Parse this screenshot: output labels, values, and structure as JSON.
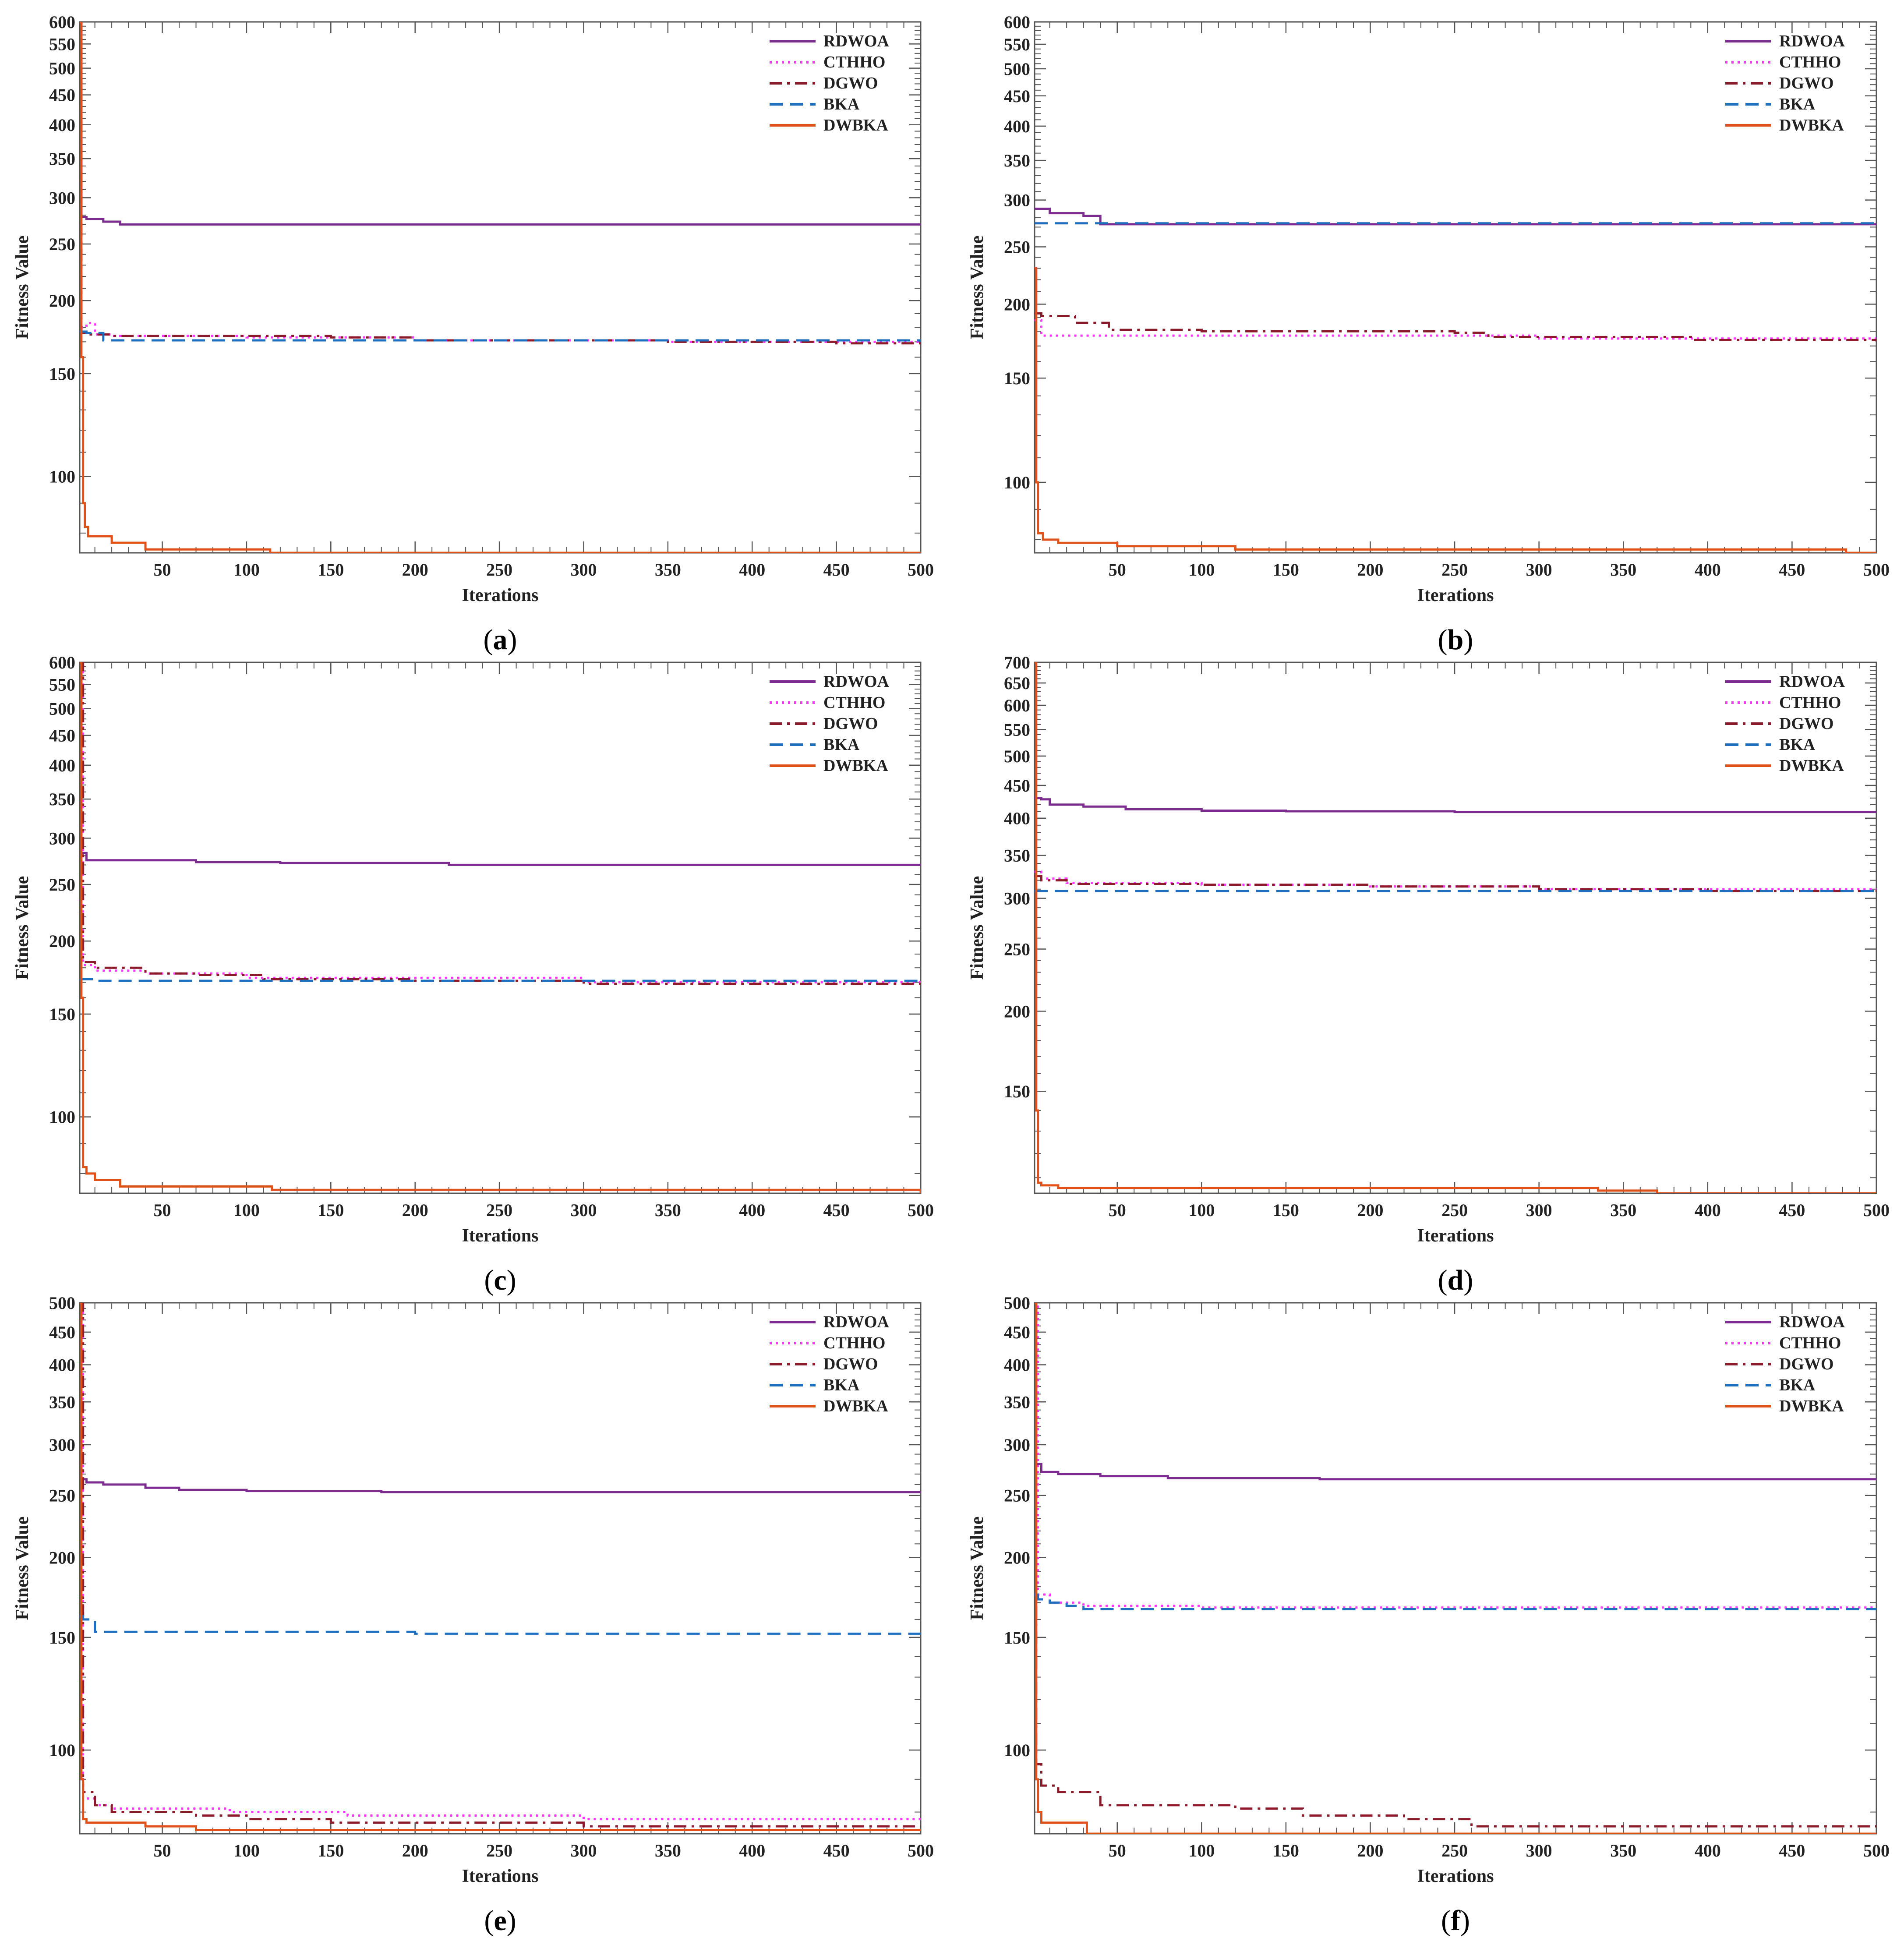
{
  "figure": {
    "x_axis_label": "Iterations",
    "y_axis_label": "Fitness Value"
  },
  "styles": {
    "RDWOA": {
      "color": "#7B2C8E",
      "dash": "solid"
    },
    "CTHHO": {
      "color": "#FF33FF",
      "dash": "dotted"
    },
    "DGWO": {
      "color": "#8B1A2B",
      "dash": "dashdot"
    },
    "BKA": {
      "color": "#1F6FBF",
      "dash": "dashed"
    },
    "DWBKA": {
      "color": "#E0521A",
      "dash": "solid"
    }
  },
  "chart_data": [
    {
      "type": "line",
      "panel_label": "a",
      "caption_open": "(",
      "caption_close": ")",
      "xlabel": "Iterations",
      "ylabel": "Fitness Value",
      "xlim": [
        1,
        500
      ],
      "ylim": [
        74,
        600
      ],
      "yscale": "log",
      "xticks": [
        50,
        100,
        150,
        200,
        250,
        300,
        350,
        400,
        450,
        500
      ],
      "yticks": [
        100,
        150,
        200,
        250,
        300,
        350,
        400,
        450,
        500,
        550,
        600
      ],
      "legend": [
        "RDWOA",
        "CTHHO",
        "DGWO",
        "BKA",
        "DWBKA"
      ],
      "legend_position": "top-right",
      "series": [
        {
          "name": "RDWOA",
          "x": [
            1,
            2,
            5,
            15,
            25,
            50,
            500
          ],
          "y": [
            600,
            278,
            276,
            273,
            270,
            270,
            270
          ]
        },
        {
          "name": "CTHHO",
          "x": [
            1,
            2,
            5,
            10,
            20,
            100,
            200,
            350,
            500
          ],
          "y": [
            600,
            180,
            183,
            175,
            174,
            173,
            171,
            170,
            170
          ]
        },
        {
          "name": "DGWO",
          "x": [
            1,
            2,
            5,
            20,
            100,
            150,
            200,
            350,
            450,
            500
          ],
          "y": [
            600,
            176,
            175,
            174,
            174,
            173,
            171,
            170,
            169,
            168
          ]
        },
        {
          "name": "BKA",
          "x": [
            1,
            5,
            15,
            100,
            200,
            350,
            500
          ],
          "y": [
            177,
            176,
            171,
            171,
            171,
            171,
            170
          ]
        },
        {
          "name": "DWBKA",
          "x": [
            1,
            2,
            3,
            4,
            6,
            14,
            20,
            38,
            40,
            110,
            114,
            500
          ],
          "y": [
            600,
            160,
            90,
            82,
            79,
            79,
            77,
            77,
            75,
            75,
            74,
            74
          ]
        }
      ]
    },
    {
      "type": "line",
      "panel_label": "b",
      "caption_open": "(",
      "caption_close": ")",
      "xlabel": "Iterations",
      "ylabel": "Fitness Value",
      "xlim": [
        1,
        500
      ],
      "ylim": [
        76,
        600
      ],
      "yscale": "log",
      "xticks": [
        50,
        100,
        150,
        200,
        250,
        300,
        350,
        400,
        450,
        500
      ],
      "yticks": [
        100,
        150,
        200,
        250,
        300,
        350,
        400,
        450,
        500,
        550,
        600
      ],
      "legend": [
        "RDWOA",
        "CTHHO",
        "DGWO",
        "BKA",
        "DWBKA"
      ],
      "legend_position": "top-right",
      "series": [
        {
          "name": "RDWOA",
          "x": [
            1,
            10,
            30,
            40,
            500
          ],
          "y": [
            290,
            285,
            282,
            273,
            273
          ]
        },
        {
          "name": "CTHHO",
          "x": [
            1,
            5,
            10,
            50,
            200,
            300,
            500
          ],
          "y": [
            188,
            177,
            177,
            177,
            177,
            175,
            175
          ]
        },
        {
          "name": "DGWO",
          "x": [
            1,
            5,
            25,
            45,
            100,
            250,
            270,
            390,
            500
          ],
          "y": [
            193,
            191,
            186,
            181,
            180,
            179,
            176,
            174,
            173
          ]
        },
        {
          "name": "BKA",
          "x": [
            1,
            500
          ],
          "y": [
            274,
            274
          ]
        },
        {
          "name": "DWBKA",
          "x": [
            1,
            2,
            3,
            6,
            15,
            20,
            50,
            70,
            120,
            480,
            482,
            500
          ],
          "y": [
            230,
            100,
            82,
            80,
            79,
            79,
            78,
            78,
            77,
            77,
            76,
            76
          ]
        }
      ]
    },
    {
      "type": "line",
      "panel_label": "c",
      "caption_open": "(",
      "caption_close": ")",
      "xlabel": "Iterations",
      "ylabel": "Fitness Value",
      "xlim": [
        1,
        500
      ],
      "ylim": [
        74,
        600
      ],
      "yscale": "log",
      "xticks": [
        50,
        100,
        150,
        200,
        250,
        300,
        350,
        400,
        450,
        500
      ],
      "yticks": [
        100,
        150,
        200,
        250,
        300,
        350,
        400,
        450,
        500,
        550,
        600
      ],
      "legend": [
        "RDWOA",
        "CTHHO",
        "DGWO",
        "BKA",
        "DWBKA"
      ],
      "legend_position": "top-right",
      "series": [
        {
          "name": "RDWOA",
          "x": [
            1,
            2,
            5,
            70,
            120,
            220,
            500
          ],
          "y": [
            600,
            283,
            275,
            273,
            272,
            270,
            270
          ]
        },
        {
          "name": "CTHHO",
          "x": [
            1,
            3,
            10,
            40,
            100,
            300,
            500
          ],
          "y": [
            600,
            182,
            178,
            176,
            173,
            170,
            170
          ]
        },
        {
          "name": "DGWO",
          "x": [
            1,
            3,
            10,
            40,
            70,
            110,
            200,
            300,
            500
          ],
          "y": [
            600,
            184,
            180,
            176,
            175,
            172,
            171,
            169,
            169
          ]
        },
        {
          "name": "BKA",
          "x": [
            1,
            10,
            100,
            500
          ],
          "y": [
            172,
            171,
            171,
            170
          ]
        },
        {
          "name": "DWBKA",
          "x": [
            1,
            2,
            3,
            5,
            10,
            20,
            25,
            70,
            115,
            250,
            500
          ],
          "y": [
            600,
            160,
            82,
            80,
            78,
            78,
            76,
            76,
            75,
            75,
            74
          ]
        }
      ]
    },
    {
      "type": "line",
      "panel_label": "d",
      "caption_open": "(",
      "caption_close": ")",
      "xlabel": "Iterations",
      "ylabel": "Fitness Value",
      "xlim": [
        1,
        500
      ],
      "ylim": [
        104,
        700
      ],
      "yscale": "log",
      "xticks": [
        50,
        100,
        150,
        200,
        250,
        300,
        350,
        400,
        450,
        500
      ],
      "yticks": [
        150,
        200,
        250,
        300,
        350,
        400,
        450,
        500,
        550,
        600,
        650,
        700
      ],
      "legend": [
        "RDWOA",
        "CTHHO",
        "DGWO",
        "BKA",
        "DWBKA"
      ],
      "legend_position": "top-right",
      "series": [
        {
          "name": "RDWOA",
          "x": [
            1,
            5,
            10,
            30,
            55,
            100,
            150,
            250,
            500
          ],
          "y": [
            430,
            428,
            420,
            417,
            413,
            411,
            410,
            409,
            408
          ]
        },
        {
          "name": "CTHHO",
          "x": [
            1,
            5,
            20,
            100,
            200,
            300,
            500
          ],
          "y": [
            330,
            322,
            317,
            315,
            313,
            310,
            310
          ]
        },
        {
          "name": "DGWO",
          "x": [
            1,
            5,
            20,
            100,
            200,
            300,
            400,
            500
          ],
          "y": [
            325,
            320,
            316,
            315,
            313,
            310,
            308,
            308
          ]
        },
        {
          "name": "BKA",
          "x": [
            1,
            500
          ],
          "y": [
            308,
            308
          ]
        },
        {
          "name": "DWBKA",
          "x": [
            1,
            2,
            3,
            5,
            10,
            15,
            130,
            335,
            350,
            370,
            500
          ],
          "y": [
            700,
            140,
            108,
            107,
            107,
            106,
            106,
            105,
            105,
            104,
            104
          ]
        }
      ]
    },
    {
      "type": "line",
      "panel_label": "e",
      "caption_open": "(",
      "caption_close": ")",
      "xlabel": "Iterations",
      "ylabel": "Fitness Value",
      "xlim": [
        1,
        500
      ],
      "ylim": [
        74,
        500
      ],
      "yscale": "log",
      "xticks": [
        50,
        100,
        150,
        200,
        250,
        300,
        350,
        400,
        450,
        500
      ],
      "yticks": [
        100,
        150,
        200,
        250,
        300,
        350,
        400,
        450,
        500
      ],
      "legend": [
        "RDWOA",
        "CTHHO",
        "DGWO",
        "BKA",
        "DWBKA"
      ],
      "legend_position": "top-right",
      "series": [
        {
          "name": "RDWOA",
          "x": [
            1,
            2,
            5,
            15,
            40,
            60,
            100,
            180,
            500
          ],
          "y": [
            500,
            265,
            262,
            260,
            257,
            255,
            254,
            253,
            253
          ]
        },
        {
          "name": "CTHHO",
          "x": [
            1,
            3,
            10,
            20,
            60,
            90,
            150,
            160,
            290,
            300,
            500
          ],
          "y": [
            500,
            84,
            82,
            81,
            81,
            80,
            80,
            79,
            79,
            78,
            78
          ]
        },
        {
          "name": "DGWO",
          "x": [
            1,
            3,
            10,
            20,
            40,
            70,
            100,
            150,
            285,
            300,
            500
          ],
          "y": [
            500,
            86,
            82,
            80,
            80,
            79,
            78,
            77,
            77,
            76,
            76
          ]
        },
        {
          "name": "BKA",
          "x": [
            1,
            3,
            10,
            100,
            200,
            500
          ],
          "y": [
            162,
            160,
            153,
            153,
            152,
            152
          ]
        },
        {
          "name": "DWBKA",
          "x": [
            1,
            2,
            3,
            5,
            20,
            40,
            60,
            70,
            500
          ],
          "y": [
            500,
            90,
            78,
            77,
            77,
            76,
            76,
            75,
            75
          ]
        }
      ]
    },
    {
      "type": "line",
      "panel_label": "f",
      "caption_open": "(",
      "caption_close": ")",
      "xlabel": "Iterations",
      "ylabel": "Fitness Value",
      "xlim": [
        1,
        500
      ],
      "ylim": [
        74,
        500
      ],
      "yscale": "log",
      "xticks": [
        50,
        100,
        150,
        200,
        250,
        300,
        350,
        400,
        450,
        500
      ],
      "yticks": [
        100,
        150,
        200,
        250,
        300,
        350,
        400,
        450,
        500
      ],
      "legend": [
        "RDWOA",
        "CTHHO",
        "DGWO",
        "BKA",
        "DWBKA"
      ],
      "legend_position": "top-right",
      "series": [
        {
          "name": "RDWOA",
          "x": [
            1,
            2,
            5,
            15,
            40,
            80,
            170,
            500
          ],
          "y": [
            500,
            280,
            272,
            270,
            268,
            266,
            265,
            265
          ]
        },
        {
          "name": "CTHHO",
          "x": [
            1,
            3,
            10,
            30,
            100,
            500
          ],
          "y": [
            500,
            175,
            170,
            168,
            167,
            167
          ]
        },
        {
          "name": "DGWO",
          "x": [
            1,
            2,
            5,
            15,
            30,
            40,
            120,
            160,
            220,
            260,
            500
          ],
          "y": [
            500,
            95,
            88,
            86,
            86,
            82,
            81,
            79,
            78,
            76,
            76
          ]
        },
        {
          "name": "BKA",
          "x": [
            1,
            3,
            10,
            20,
            30,
            100,
            500
          ],
          "y": [
            175,
            172,
            170,
            168,
            166,
            166,
            166
          ]
        },
        {
          "name": "DWBKA",
          "x": [
            1,
            2,
            3,
            5,
            28,
            32,
            500
          ],
          "y": [
            500,
            90,
            80,
            77,
            77,
            74,
            74
          ]
        }
      ]
    }
  ]
}
